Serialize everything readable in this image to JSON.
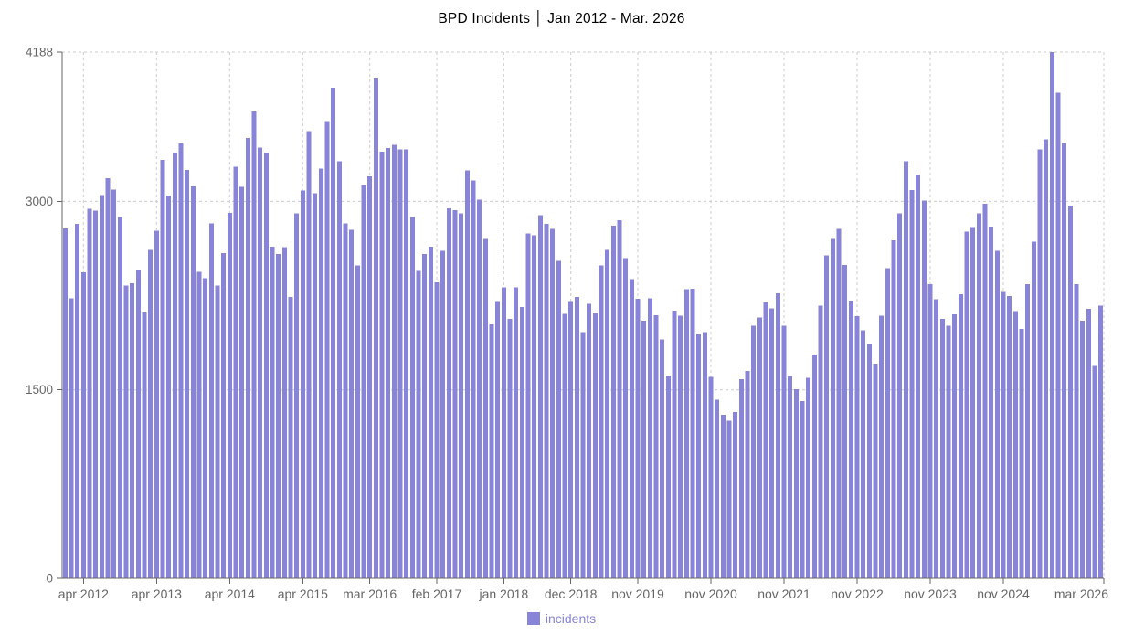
{
  "title": "BPD Incidents │ Jan 2012 - Mar. 2026",
  "legend": {
    "label": "incidents"
  },
  "colors": {
    "bar": "#8884d8",
    "grid": "#cccccc",
    "axis": "#666666",
    "tick_text": "#666666",
    "title_text": "#000000",
    "legend_text": "#8884d8",
    "background": "#ffffff"
  },
  "chart_data": {
    "type": "bar",
    "title": "BPD Incidents │ Jan 2012 - Mar. 2026",
    "series_name": "incidents",
    "xlabel": "",
    "ylabel": "",
    "ylim": [
      0,
      4188
    ],
    "y_ticks": [
      0,
      1500,
      3000,
      4188
    ],
    "grid": true,
    "legend_position": "bottom",
    "x_ticks": [
      {
        "index": 3,
        "label": "apr 2012"
      },
      {
        "index": 15,
        "label": "apr 2013"
      },
      {
        "index": 27,
        "label": "apr 2014"
      },
      {
        "index": 39,
        "label": "apr 2015"
      },
      {
        "index": 50,
        "label": "mar 2016"
      },
      {
        "index": 61,
        "label": "feb 2017"
      },
      {
        "index": 72,
        "label": "jan 2018"
      },
      {
        "index": 83,
        "label": "dec 2018"
      },
      {
        "index": 94,
        "label": "nov 2019"
      },
      {
        "index": 106,
        "label": "nov 2020"
      },
      {
        "index": 118,
        "label": "nov 2021"
      },
      {
        "index": 130,
        "label": "nov 2022"
      },
      {
        "index": 142,
        "label": "nov 2023"
      },
      {
        "index": 154,
        "label": "nov 2024"
      },
      {
        "index": 170,
        "label": "mar 2026"
      }
    ],
    "months": [
      "jan 2012",
      "feb 2012",
      "mar 2012",
      "apr 2012",
      "may 2012",
      "jun 2012",
      "jul 2012",
      "aug 2012",
      "sep 2012",
      "oct 2012",
      "nov 2012",
      "dec 2012",
      "jan 2013",
      "feb 2013",
      "mar 2013",
      "apr 2013",
      "may 2013",
      "jun 2013",
      "jul 2013",
      "aug 2013",
      "sep 2013",
      "oct 2013",
      "nov 2013",
      "dec 2013",
      "jan 2014",
      "feb 2014",
      "mar 2014",
      "apr 2014",
      "may 2014",
      "jun 2014",
      "jul 2014",
      "aug 2014",
      "sep 2014",
      "oct 2014",
      "nov 2014",
      "dec 2014",
      "jan 2015",
      "feb 2015",
      "mar 2015",
      "apr 2015",
      "may 2015",
      "jun 2015",
      "jul 2015",
      "aug 2015",
      "sep 2015",
      "oct 2015",
      "nov 2015",
      "dec 2015",
      "jan 2016",
      "feb 2016",
      "mar 2016",
      "apr 2016",
      "may 2016",
      "jun 2016",
      "jul 2016",
      "aug 2016",
      "sep 2016",
      "oct 2016",
      "nov 2016",
      "dec 2016",
      "jan 2017",
      "feb 2017",
      "mar 2017",
      "apr 2017",
      "may 2017",
      "jun 2017",
      "jul 2017",
      "aug 2017",
      "sep 2017",
      "oct 2017",
      "nov 2017",
      "dec 2017",
      "jan 2018",
      "feb 2018",
      "mar 2018",
      "apr 2018",
      "may 2018",
      "jun 2018",
      "jul 2018",
      "aug 2018",
      "sep 2018",
      "oct 2018",
      "nov 2018",
      "dec 2018",
      "jan 2019",
      "feb 2019",
      "mar 2019",
      "apr 2019",
      "may 2019",
      "jun 2019",
      "jul 2019",
      "aug 2019",
      "sep 2019",
      "oct 2019",
      "nov 2019",
      "dec 2019",
      "jan 2020",
      "feb 2020",
      "mar 2020",
      "apr 2020",
      "may 2020",
      "jun 2020",
      "jul 2020",
      "aug 2020",
      "sep 2020",
      "oct 2020",
      "nov 2020",
      "dec 2020",
      "jan 2021",
      "feb 2021",
      "mar 2021",
      "apr 2021",
      "may 2021",
      "jun 2021",
      "jul 2021",
      "aug 2021",
      "sep 2021",
      "oct 2021",
      "nov 2021",
      "dec 2021",
      "jan 2022",
      "feb 2022",
      "mar 2022",
      "apr 2022",
      "may 2022",
      "jun 2022",
      "jul 2022",
      "aug 2022",
      "sep 2022",
      "oct 2022",
      "nov 2022",
      "dec 2022",
      "jan 2023",
      "feb 2023",
      "mar 2023",
      "apr 2023",
      "may 2023",
      "jun 2023",
      "jul 2023",
      "aug 2023",
      "sep 2023",
      "oct 2023",
      "nov 2023",
      "dec 2023",
      "jan 2024",
      "feb 2024",
      "mar 2024",
      "apr 2024",
      "may 2024",
      "jun 2024",
      "jul 2024",
      "aug 2024",
      "sep 2024",
      "oct 2024",
      "nov 2024",
      "dec 2024",
      "jan 2025",
      "feb 2025",
      "mar 2025",
      "apr 2025",
      "may 2025",
      "jun 2025",
      "jul 2025",
      "aug 2025",
      "sep 2025",
      "oct 2025",
      "nov 2025",
      "dec 2025",
      "jan 2026",
      "feb 2026",
      "mar 2026"
    ],
    "values": [
      2785,
      2230,
      2820,
      2435,
      2940,
      2925,
      3050,
      3185,
      3095,
      2875,
      2330,
      2350,
      2450,
      2115,
      2615,
      2765,
      3330,
      3048,
      3385,
      3460,
      3250,
      3120,
      2440,
      2390,
      2825,
      2330,
      2590,
      2910,
      3275,
      3115,
      3505,
      3715,
      3430,
      3385,
      2640,
      2580,
      2635,
      2240,
      2905,
      3085,
      3560,
      3065,
      3260,
      3640,
      3905,
      3320,
      2825,
      2775,
      2490,
      3130,
      3200,
      3985,
      3395,
      3425,
      3450,
      3415,
      3415,
      2875,
      2445,
      2580,
      2640,
      2355,
      2605,
      2945,
      2930,
      2905,
      3245,
      3165,
      3015,
      2700,
      2020,
      2205,
      2315,
      2065,
      2315,
      2160,
      2745,
      2730,
      2890,
      2820,
      2780,
      2525,
      2105,
      2205,
      2240,
      1960,
      2185,
      2110,
      2490,
      2615,
      2805,
      2850,
      2550,
      2380,
      2225,
      2050,
      2230,
      2095,
      1900,
      1615,
      2130,
      2090,
      2300,
      2305,
      1940,
      1960,
      1605,
      1420,
      1300,
      1255,
      1325,
      1585,
      1650,
      2010,
      2075,
      2195,
      2150,
      2270,
      2010,
      1610,
      1505,
      1410,
      1595,
      1780,
      2170,
      2570,
      2700,
      2780,
      2495,
      2210,
      2085,
      1975,
      1870,
      1710,
      2090,
      2470,
      2690,
      2905,
      3320,
      3090,
      3210,
      3005,
      2340,
      2220,
      2065,
      2010,
      2100,
      2260,
      2760,
      2795,
      2905,
      2980,
      2800,
      2605,
      2280,
      2245,
      2125,
      1985,
      2340,
      2680,
      3415,
      3495,
      4188,
      3865,
      3465,
      2965,
      2340,
      2050,
      2145,
      1690,
      2170
    ]
  }
}
